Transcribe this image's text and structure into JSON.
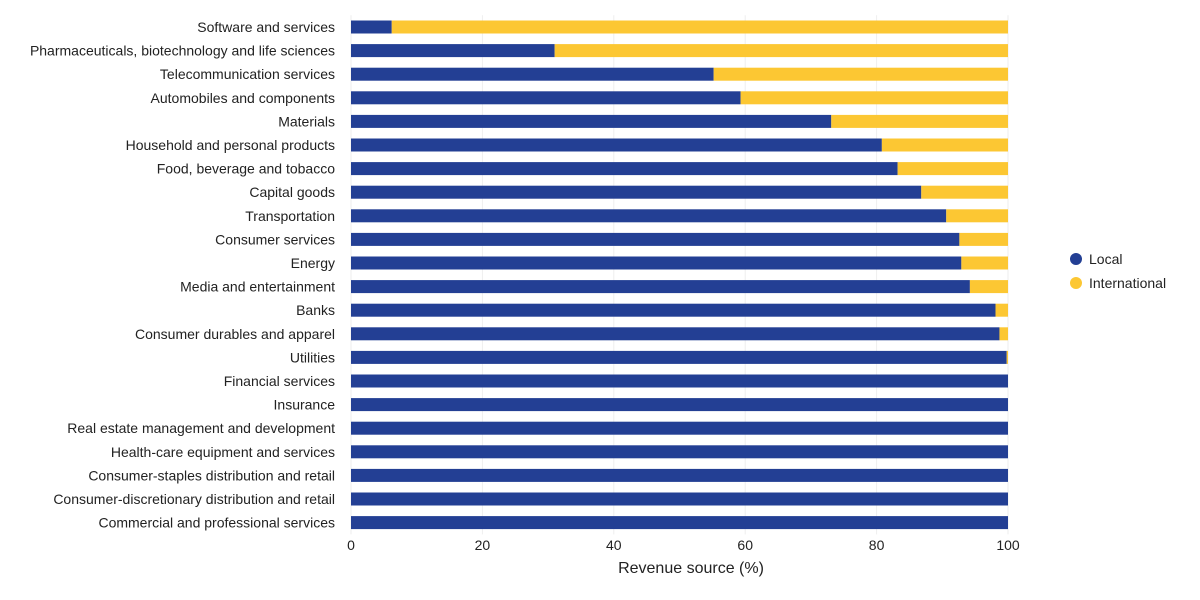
{
  "chart_data": {
    "type": "bar",
    "orientation": "horizontal",
    "stacked": true,
    "categories": [
      "Software and services",
      "Pharmaceuticals, biotechnology and life sciences",
      "Telecommunication services",
      "Automobiles and components",
      "Materials",
      "Household and personal products",
      "Food, beverage and tobacco",
      "Capital goods",
      "Transportation",
      "Consumer services",
      "Energy",
      "Media and entertainment",
      "Banks",
      "Consumer durables and apparel",
      "Utilities",
      "Financial services",
      "Insurance",
      "Real estate management and development",
      "Health-care equipment and services",
      "Consumer-staples distribution and retail",
      "Consumer-discretionary distribution and retail",
      "Commercial and professional services"
    ],
    "series": [
      {
        "name": "Local",
        "color": "#233f94",
        "values": [
          6.2,
          31,
          55.2,
          59.3,
          73.1,
          80.8,
          83.2,
          86.8,
          90.6,
          92.6,
          92.9,
          94.2,
          98.1,
          98.7,
          99.8,
          100,
          100,
          100,
          100,
          100,
          100,
          100
        ]
      },
      {
        "name": "International",
        "color": "#fcc733",
        "values": [
          93.8,
          69,
          44.8,
          40.7,
          26.9,
          19.2,
          16.8,
          13.2,
          9.4,
          7.4,
          7.1,
          5.8,
          1.9,
          1.3,
          0.2,
          0,
          0,
          0,
          0,
          0,
          0,
          0
        ]
      }
    ],
    "xlabel": "Revenue source (%)",
    "ylabel": "",
    "xlim": [
      0,
      100
    ],
    "xticks": [
      "0",
      "20",
      "40",
      "60",
      "80",
      "100"
    ],
    "grid": "vertical",
    "legend": "right"
  }
}
